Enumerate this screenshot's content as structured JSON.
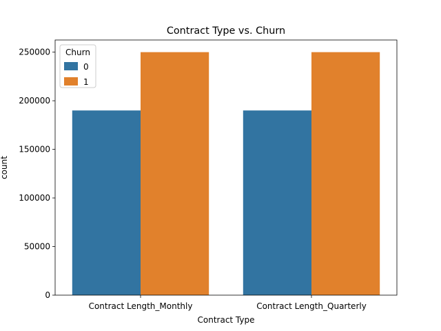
{
  "chart_data": {
    "type": "bar",
    "title": "Contract Type vs. Churn",
    "xlabel": "Contract Type",
    "ylabel": "count",
    "categories": [
      "Contract Length_Monthly",
      "Contract Length_Quarterly"
    ],
    "series": [
      {
        "name": "0",
        "values": [
          190000,
          190000
        ],
        "color": "#3274a1"
      },
      {
        "name": "1",
        "values": [
          250000,
          250000
        ],
        "color": "#e1812c"
      }
    ],
    "ylim": [
      0,
      262500
    ],
    "yticks": [
      0,
      50000,
      100000,
      150000,
      200000,
      250000
    ],
    "legend": {
      "title": "Churn",
      "placement": "top-left"
    },
    "grid": false
  }
}
